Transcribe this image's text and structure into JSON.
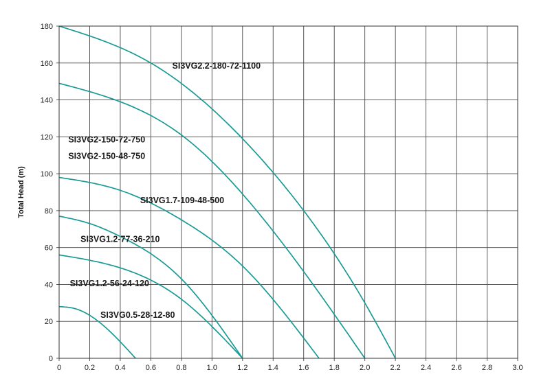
{
  "chart_data": {
    "type": "line",
    "ylabel": "Total Head (m)",
    "xlabel": "",
    "xlim": [
      0,
      3.0
    ],
    "ylim": [
      0,
      180
    ],
    "xticks": [
      "0",
      "0.2",
      "0.4",
      "0.6",
      "0.8",
      "1.0",
      "1.2",
      "1.4",
      "1.6",
      "1.8",
      "2.0",
      "2.2",
      "2.4",
      "2.6",
      "2.8",
      "3.0"
    ],
    "yticks": [
      "0",
      "20",
      "40",
      "60",
      "80",
      "100",
      "120",
      "140",
      "160",
      "180"
    ],
    "grid": true,
    "line_color": "#1a9a96",
    "series": [
      {
        "name": "SI3VG2.2-180-72-1100",
        "x": [
          0,
          0.6,
          1.2,
          1.6,
          2.0,
          2.2
        ],
        "y": [
          180,
          160,
          119,
          80,
          30,
          0
        ]
      },
      {
        "name": "SI3VG2-150-72-750",
        "x": [
          0,
          0.4,
          0.8,
          1.2,
          1.6,
          2.0
        ],
        "y": [
          149,
          139,
          121,
          89,
          47,
          0
        ]
      },
      {
        "name": "SI3VG2-150-48-750",
        "x": [
          0,
          0.4,
          0.8,
          1.2,
          1.6,
          2.0
        ],
        "y": [
          149,
          139,
          121,
          89,
          47,
          0
        ]
      },
      {
        "name": "SI3VG1.7-109-48-500",
        "x": [
          0,
          0.4,
          0.8,
          1.2,
          1.7
        ],
        "y": [
          98,
          91,
          75,
          50,
          0
        ]
      },
      {
        "name": "SI3VG1.2-77-36-210",
        "x": [
          0,
          0.2,
          0.4,
          0.8,
          1.2
        ],
        "y": [
          77,
          73,
          66,
          43,
          0
        ]
      },
      {
        "name": "SI3VG1.2-56-24-120",
        "x": [
          0,
          0.4,
          0.8,
          1.2
        ],
        "y": [
          56,
          49,
          32,
          0
        ]
      },
      {
        "name": "SI3VG0.5-28-12-80",
        "x": [
          0,
          0.1,
          0.3,
          0.5
        ],
        "y": [
          28,
          27,
          17,
          0
        ]
      }
    ],
    "annotations": [
      {
        "text": "SI3VG2.2-180-72-1100",
        "x": 0.74,
        "y": 157
      },
      {
        "text": "SI3VG2-150-72-750",
        "x": 0.06,
        "y": 117
      },
      {
        "text": "SI3VG2-150-48-750",
        "x": 0.06,
        "y": 108
      },
      {
        "text": "SI3VG1.7-109-48-500",
        "x": 0.53,
        "y": 84
      },
      {
        "text": "SI3VG1.2-77-36-210",
        "x": 0.14,
        "y": 63
      },
      {
        "text": "SI3VG1.2-56-24-120",
        "x": 0.07,
        "y": 39
      },
      {
        "text": "SI3VG0.5-28-12-80",
        "x": 0.27,
        "y": 22
      }
    ]
  }
}
